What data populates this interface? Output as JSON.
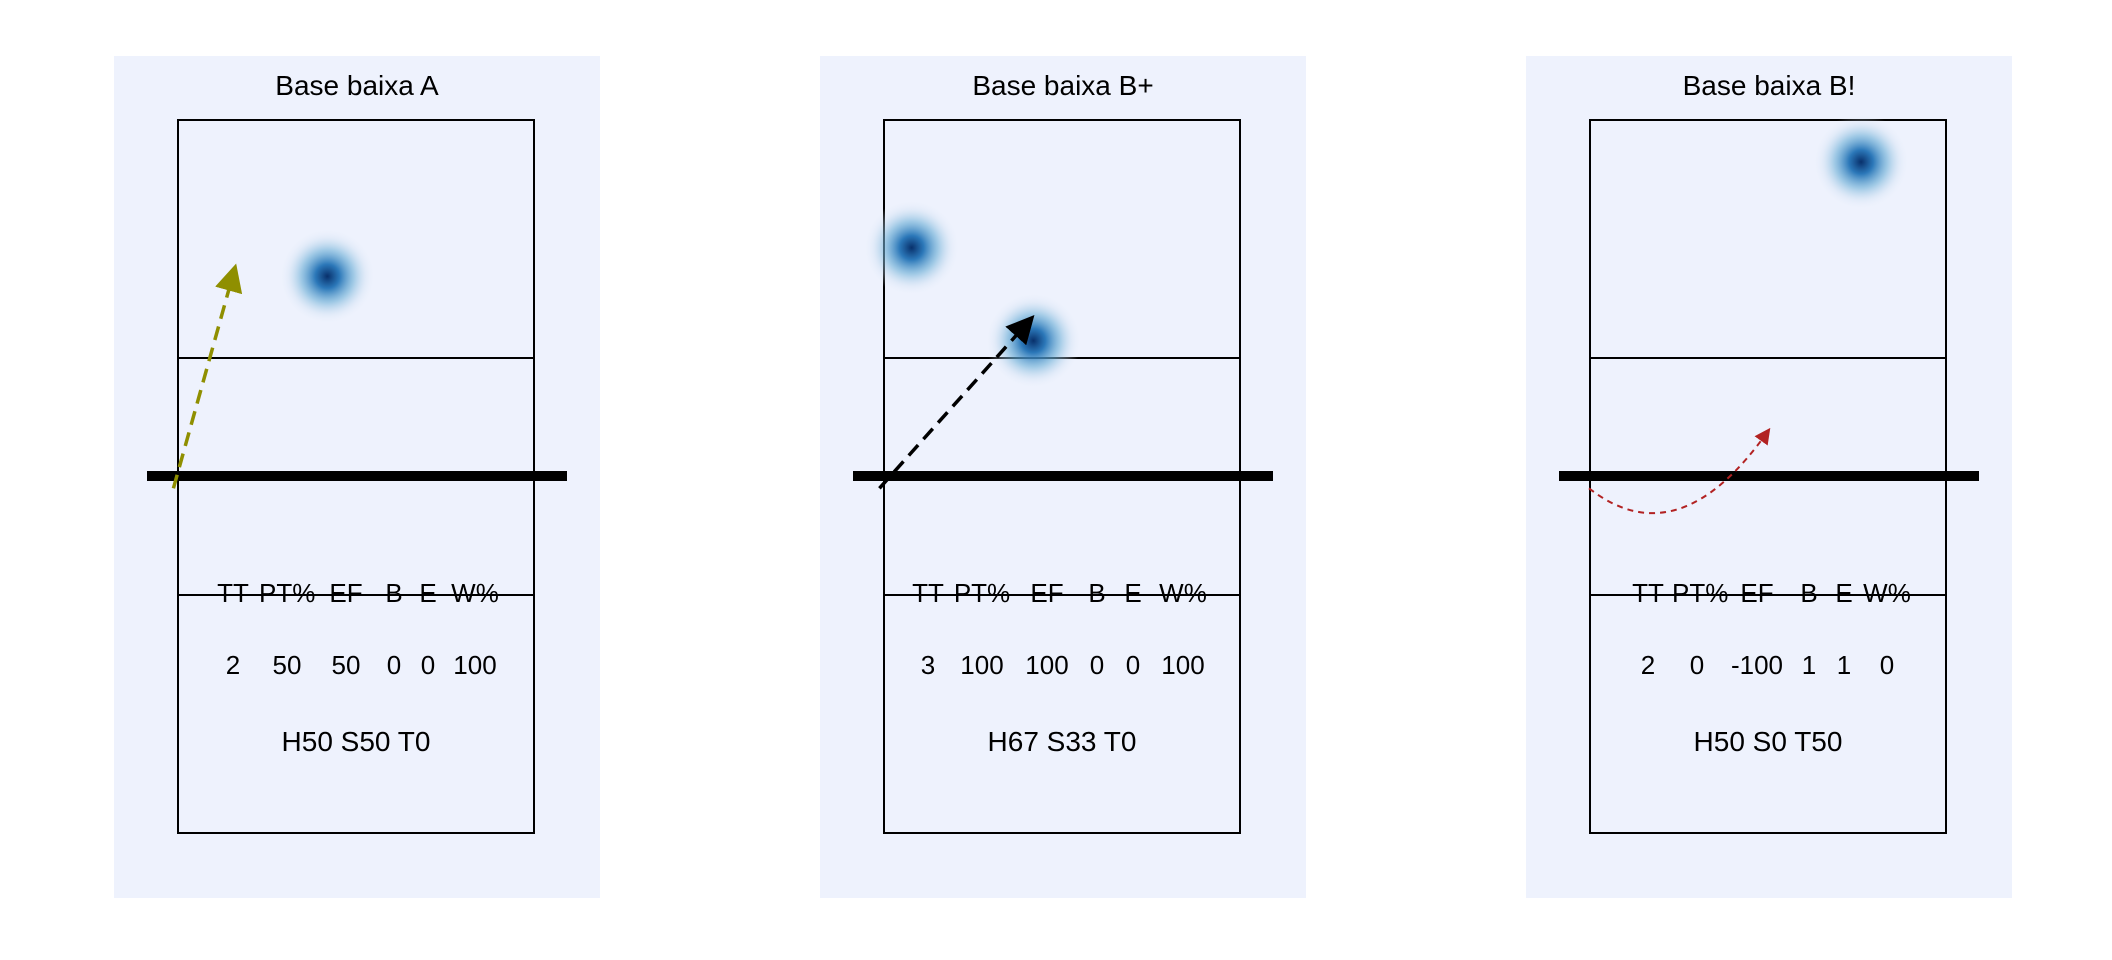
{
  "chart_data": [
    {
      "type": "heatmap",
      "title": "Base baixa A",
      "stats_headers": [
        "TT",
        "PT%",
        "EF",
        "B",
        "E",
        "W%"
      ],
      "stats_values": [
        "2",
        "50",
        "50",
        "0",
        "0",
        "100"
      ],
      "summary": "H50 S50 T0",
      "hotspots": [
        {
          "x": 0.42,
          "y": 0.22
        }
      ],
      "arrow": {
        "color": "#8f8f00",
        "style": "dashed",
        "from": {
          "x": -0.01,
          "y": -0.04
        },
        "to": {
          "x": 0.16,
          "y": 0.57
        },
        "curve": false
      }
    },
    {
      "type": "heatmap",
      "title": "Base baixa B+",
      "stats_headers": [
        "TT",
        "PT%",
        "EF",
        "B",
        "E",
        "W%"
      ],
      "stats_values": [
        "3",
        "100",
        "100",
        "0",
        "0",
        "100"
      ],
      "summary": "H67 S33 T0",
      "hotspots": [
        {
          "x": 0.08,
          "y": 0.18
        },
        {
          "x": 0.42,
          "y": 0.31
        }
      ],
      "arrow": {
        "color": "#000000",
        "style": "dashed",
        "from": {
          "x": -0.01,
          "y": -0.04
        },
        "to": {
          "x": 0.41,
          "y": 0.43
        },
        "curve": false
      }
    },
    {
      "type": "heatmap",
      "title": "Base baixa B!",
      "stats_headers": [
        "TT",
        "PT%",
        "EF",
        "B",
        "E",
        "W%"
      ],
      "stats_values": [
        "2",
        "0",
        "-100",
        "1",
        "1",
        "0"
      ],
      "summary": "H50 S0 T50",
      "hotspots": [
        {
          "x": 0.76,
          "y": 0.06
        }
      ],
      "arrow": {
        "color": "#b22222",
        "style": "dotted",
        "from": {
          "x": 0.0,
          "y": -0.04
        },
        "to": {
          "x": 0.5,
          "y": 0.12
        },
        "curve": true
      }
    }
  ]
}
